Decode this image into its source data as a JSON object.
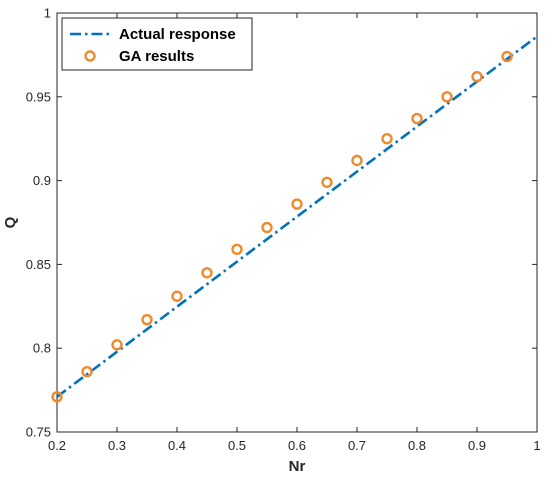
{
  "chart_data": {
    "type": "line",
    "title": "",
    "xlabel": "Nr",
    "ylabel": "Q",
    "xlim": [
      0.2,
      1
    ],
    "ylim": [
      0.75,
      1
    ],
    "xticks": [
      0.2,
      0.3,
      0.4,
      0.5,
      0.6,
      0.7,
      0.8,
      0.9,
      1
    ],
    "xtick_labels": [
      "0.2",
      "0.3",
      "0.4",
      "0.5",
      "0.6",
      "0.7",
      "0.8",
      "0.9",
      "1"
    ],
    "yticks": [
      0.75,
      0.8,
      0.85,
      0.9,
      0.95,
      1
    ],
    "ytick_labels": [
      "0.75",
      "0.8",
      "0.85",
      "0.9",
      "0.95",
      "1"
    ],
    "grid": false,
    "legend_position": "top-left",
    "series": [
      {
        "name": "Actual response",
        "style": "dash-dot line",
        "color": "#0072BD",
        "x": [
          0.2,
          1.0
        ],
        "y": [
          0.771,
          0.986
        ]
      },
      {
        "name": "GA results",
        "style": "circle markers",
        "color": "#EE8A2C",
        "x": [
          0.2,
          0.25,
          0.3,
          0.35,
          0.4,
          0.45,
          0.5,
          0.55,
          0.6,
          0.65,
          0.7,
          0.75,
          0.8,
          0.85,
          0.9,
          0.95
        ],
        "y": [
          0.771,
          0.786,
          0.802,
          0.817,
          0.831,
          0.845,
          0.859,
          0.872,
          0.886,
          0.899,
          0.912,
          0.925,
          0.937,
          0.95,
          0.962,
          0.974
        ]
      }
    ]
  }
}
